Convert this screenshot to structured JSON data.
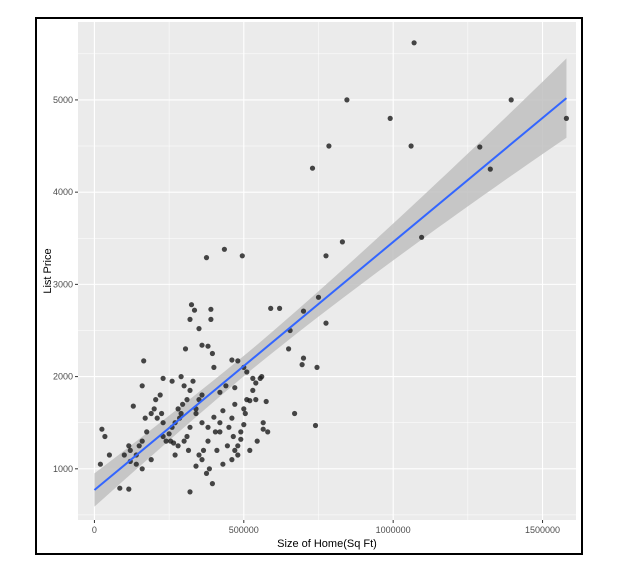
{
  "chart_data": {
    "type": "scatter",
    "xlabel": "Size of Home(Sq Ft)",
    "ylabel": "List Price",
    "xlim": [
      -55000,
      1612000
    ],
    "ylim": [
      445,
      5845
    ],
    "x_ticks": [
      0,
      500000,
      1000000,
      1500000
    ],
    "x_tick_labels": [
      "0",
      "500000",
      "1000000",
      "1500000"
    ],
    "y_ticks": [
      1000,
      2000,
      3000,
      4000,
      5000
    ],
    "y_tick_labels": [
      "1000",
      "2000",
      "3000",
      "4000",
      "5000"
    ],
    "grid": true,
    "colors": {
      "panel_bg": "#ebebeb",
      "grid_major": "#ffffff",
      "point": "#1a1a1a",
      "line": "#3366ff",
      "ribbon": "#bfbfbf"
    },
    "regression": {
      "method": "linear",
      "x": [
        0,
        1580000
      ],
      "y": [
        770,
        5020
      ],
      "ci_lower": [
        590,
        4590
      ],
      "ci_upper": [
        950,
        5460
      ]
    },
    "points": [
      [
        1070000,
        5620
      ],
      [
        845000,
        5000
      ],
      [
        1395000,
        5000
      ],
      [
        990000,
        4800
      ],
      [
        1580000,
        4800
      ],
      [
        785000,
        4500
      ],
      [
        1060000,
        4500
      ],
      [
        1290000,
        4490
      ],
      [
        1325000,
        4250
      ],
      [
        730000,
        4260
      ],
      [
        1095000,
        3510
      ],
      [
        830000,
        3460
      ],
      [
        435000,
        3380
      ],
      [
        375000,
        3290
      ],
      [
        775000,
        3310
      ],
      [
        495000,
        3310
      ],
      [
        750000,
        2860
      ],
      [
        655000,
        2500
      ],
      [
        590000,
        2740
      ],
      [
        620000,
        2740
      ],
      [
        700000,
        2710
      ],
      [
        775000,
        2580
      ],
      [
        650000,
        2300
      ],
      [
        700000,
        2200
      ],
      [
        695000,
        2130
      ],
      [
        745000,
        2100
      ],
      [
        670000,
        1600
      ],
      [
        740000,
        1470
      ],
      [
        325000,
        2780
      ],
      [
        335000,
        2720
      ],
      [
        320000,
        2620
      ],
      [
        390000,
        2730
      ],
      [
        390000,
        2620
      ],
      [
        350000,
        2520
      ],
      [
        360000,
        2340
      ],
      [
        380000,
        2330
      ],
      [
        395000,
        2250
      ],
      [
        305000,
        2300
      ],
      [
        400000,
        2100
      ],
      [
        460000,
        2180
      ],
      [
        480000,
        2170
      ],
      [
        500000,
        2100
      ],
      [
        510000,
        2050
      ],
      [
        530000,
        1980
      ],
      [
        555000,
        1980
      ],
      [
        540000,
        1930
      ],
      [
        470000,
        1880
      ],
      [
        440000,
        1900
      ],
      [
        420000,
        1830
      ],
      [
        470000,
        1700
      ],
      [
        500000,
        1650
      ],
      [
        430000,
        1630
      ],
      [
        520000,
        1740
      ],
      [
        540000,
        1750
      ],
      [
        575000,
        1730
      ],
      [
        565000,
        1500
      ],
      [
        565000,
        1430
      ],
      [
        545000,
        1300
      ],
      [
        520000,
        1200
      ],
      [
        480000,
        1250
      ],
      [
        480000,
        1150
      ],
      [
        460000,
        1100
      ],
      [
        430000,
        1050
      ],
      [
        490000,
        1320
      ],
      [
        490000,
        1400
      ],
      [
        420000,
        1400
      ],
      [
        420000,
        1500
      ],
      [
        380000,
        1450
      ],
      [
        380000,
        1300
      ],
      [
        365000,
        1200
      ],
      [
        360000,
        1100
      ],
      [
        385000,
        1000
      ],
      [
        375000,
        950
      ],
      [
        395000,
        840
      ],
      [
        320000,
        1450
      ],
      [
        310000,
        1350
      ],
      [
        300000,
        1300
      ],
      [
        280000,
        1250
      ],
      [
        270000,
        1150
      ],
      [
        255000,
        1300
      ],
      [
        260000,
        1450
      ],
      [
        290000,
        1600
      ],
      [
        295000,
        1700
      ],
      [
        310000,
        1750
      ],
      [
        340000,
        1650
      ],
      [
        320000,
        1850
      ],
      [
        290000,
        2000
      ],
      [
        260000,
        1950
      ],
      [
        230000,
        1980
      ],
      [
        220000,
        1800
      ],
      [
        200000,
        1650
      ],
      [
        190000,
        1600
      ],
      [
        170000,
        1550
      ],
      [
        175000,
        1400
      ],
      [
        160000,
        1300
      ],
      [
        150000,
        1250
      ],
      [
        140000,
        1150
      ],
      [
        160000,
        1000
      ],
      [
        140000,
        1050
      ],
      [
        120000,
        1080
      ],
      [
        120000,
        1200
      ],
      [
        115000,
        1250
      ],
      [
        100000,
        1150
      ],
      [
        85000,
        790
      ],
      [
        115000,
        780
      ],
      [
        25000,
        1430
      ],
      [
        35000,
        1350
      ],
      [
        50000,
        1150
      ],
      [
        20000,
        1050
      ],
      [
        165000,
        2170
      ],
      [
        160000,
        1900
      ],
      [
        225000,
        1600
      ],
      [
        230000,
        1500
      ],
      [
        230000,
        1350
      ],
      [
        240000,
        1300
      ],
      [
        250000,
        1380
      ],
      [
        265000,
        1280
      ],
      [
        270000,
        1500
      ],
      [
        280000,
        1650
      ],
      [
        285000,
        1550
      ],
      [
        315000,
        1200
      ],
      [
        320000,
        750
      ],
      [
        340000,
        1030
      ],
      [
        350000,
        1150
      ],
      [
        360000,
        1800
      ],
      [
        400000,
        1560
      ],
      [
        405000,
        1400
      ],
      [
        410000,
        1200
      ],
      [
        445000,
        1250
      ],
      [
        450000,
        1450
      ],
      [
        460000,
        1550
      ],
      [
        465000,
        1350
      ],
      [
        470000,
        1200
      ],
      [
        500000,
        1480
      ],
      [
        505000,
        1600
      ],
      [
        510000,
        1750
      ],
      [
        530000,
        1850
      ],
      [
        560000,
        2000
      ],
      [
        580000,
        1400
      ],
      [
        190000,
        1100
      ],
      [
        205000,
        1750
      ],
      [
        210000,
        1550
      ],
      [
        130000,
        1680
      ],
      [
        300000,
        1900
      ],
      [
        330000,
        1950
      ],
      [
        340000,
        1600
      ],
      [
        350000,
        1750
      ],
      [
        360000,
        1500
      ]
    ]
  }
}
